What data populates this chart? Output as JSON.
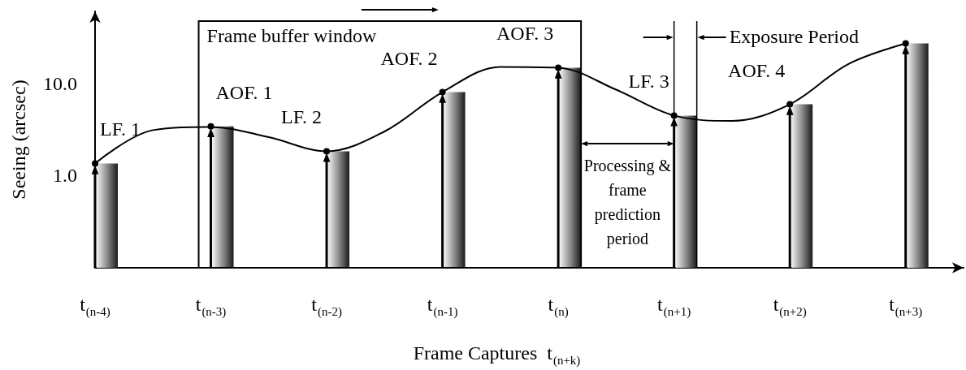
{
  "chart_data": {
    "type": "bar",
    "xlabel": "Frame Captures  t$_{(n+k)}$",
    "ylabel": "Seeing (arcsec)",
    "categories": [
      "t$_{(n-4)}$",
      null,
      "t$_{(n-3)}$",
      null,
      "t$_{(n-2)}$",
      null,
      "t$_{(n-1)}$",
      null,
      "t$_{(n)}$",
      null,
      "t$_{(n+1)}$",
      null,
      "t$_{(n+2)}$",
      null,
      "t$_{(n+3)}$",
      null
    ],
    "values": [
      1.35,
      null,
      3.4,
      null,
      1.83,
      null,
      8.0,
      null,
      14.7,
      null,
      4.46,
      null,
      5.9,
      null,
      27,
      null
    ],
    "color": "#808080",
    "series": [
      {
        "type": "line",
        "color": "#000000",
        "values": [
          1.35,
          3.1,
          3.36,
          2.6,
          1.83,
          3.0,
          8.0,
          15.0,
          14.7,
          8.5,
          4.46,
          3.9,
          5.9,
          16.0,
          27,
          null
        ]
      }
    ],
    "ylim": [
      0.1,
      60
    ],
    "yticks": [
      {
        "value": 1,
        "label": "1.0"
      },
      {
        "value": 10,
        "label": "10.0"
      }
    ],
    "log": "y",
    "annotations": [
      "Frame buffer window",
      "Processing & frame prediction period",
      "Exposure Period",
      {
        "text": "LF. 1",
        "x": "t$_{(n-4)}$",
        "y": 1.35
      },
      {
        "text": "AOF. 1",
        "x": "t$_{(n-3)}$",
        "y": 3.4
      },
      {
        "text": "LF. 2",
        "x": "t$_{(n-2)}$",
        "y": 1.83
      },
      {
        "text": "AOF. 2",
        "x": "t$_{(n-1)}$",
        "y": 8.0
      },
      {
        "text": "AOF. 3",
        "x": "t$_{(n)}$",
        "y": 14.7
      },
      {
        "text": "LF. 3",
        "x": "t$_{(n+1)}$",
        "y": 4.46
      },
      {
        "text": "AOF. 4",
        "x": "t$_{(n+2)}$",
        "y": 5.9
      }
    ]
  }
}
